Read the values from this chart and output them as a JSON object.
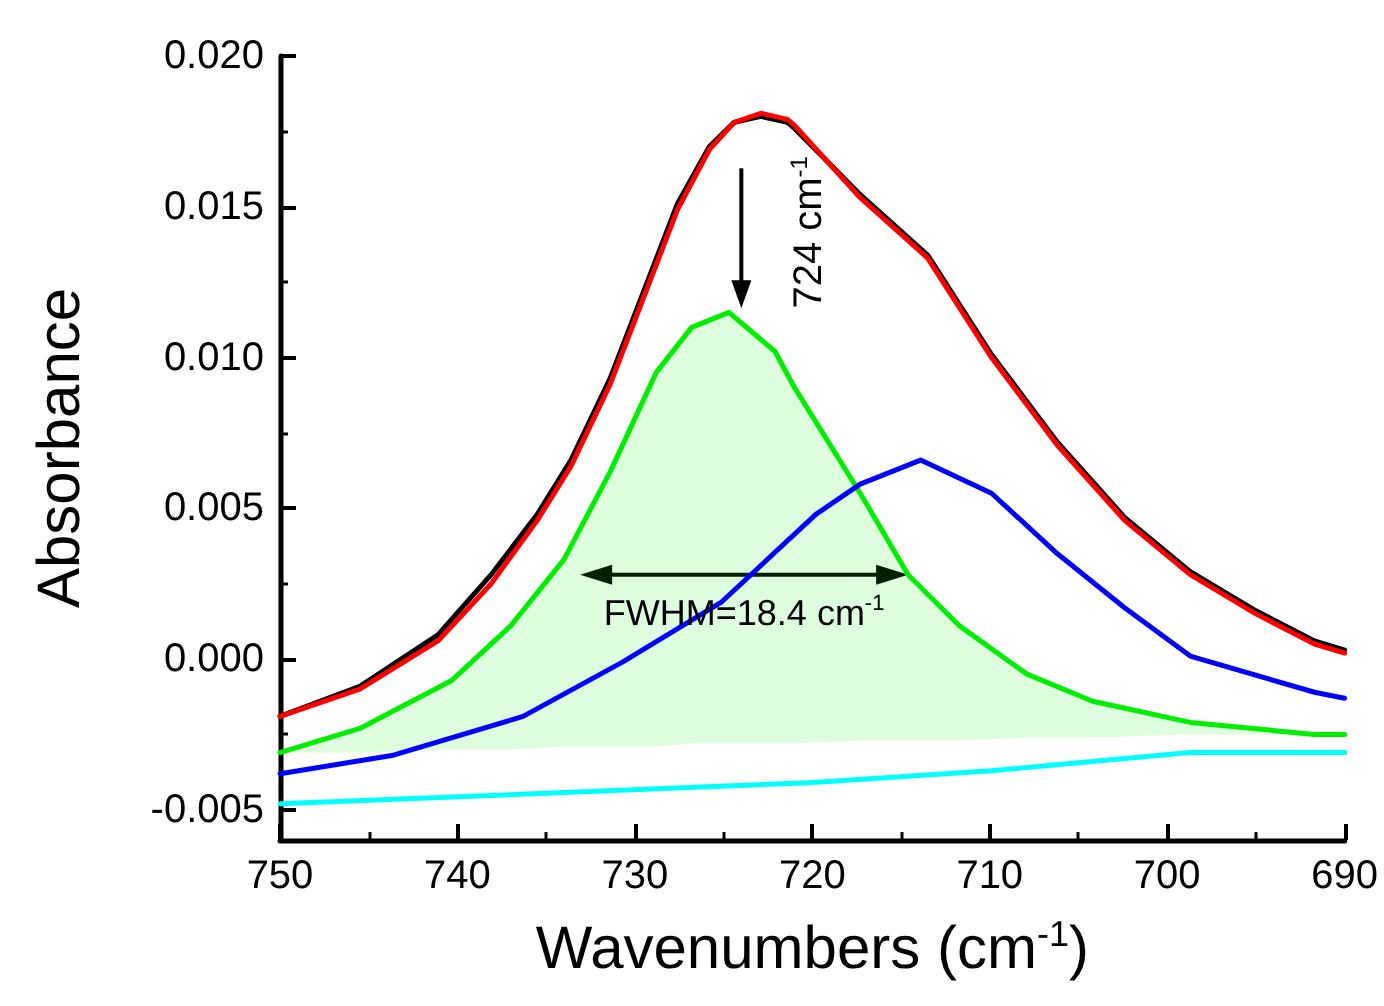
{
  "chart_data": {
    "type": "line",
    "xlabel": "Wavenumbers (cm$^{-1}$)",
    "ylabel": "Absorbance",
    "xlim": [
      750,
      690
    ],
    "xticks": [
      750,
      740,
      730,
      720,
      710,
      700,
      690
    ],
    "ylim": [
      -0.006,
      0.02
    ],
    "yticks": [
      {
        "value": -0.005,
        "label": "-0.005"
      },
      {
        "value": 0,
        "label": "0.000"
      },
      {
        "value": 0.005,
        "label": "0.005"
      },
      {
        "value": 0.01,
        "label": "0.010"
      },
      {
        "value": 0.015,
        "label": "0.015"
      },
      {
        "value": 0.02,
        "label": "0.020"
      }
    ],
    "marker": "none",
    "line_style": "solid",
    "series": [
      {
        "color": "#000000",
        "x": [
          750,
          745.5,
          741.1,
          738.1,
          735.5,
          733.6,
          731.4,
          729.5,
          727.6,
          725.8,
          724.4,
          722.9,
          721.4,
          721,
          717.3,
          713.5,
          709.9,
          706.2,
          702.4,
          698.7,
          695,
          691.7,
          690
        ],
        "values": [
          -0.0019,
          -0.0009,
          0.0008,
          0.0028,
          0.0048,
          0.0066,
          0.0093,
          0.0122,
          0.0151,
          0.017,
          0.0178,
          0.018,
          0.0178,
          0.0176,
          0.0154,
          0.0134,
          0.0101,
          0.0072,
          0.0047,
          0.0029,
          0.0016,
          0.0006,
          0.0003
        ]
      },
      {
        "color": "#ff0000",
        "x": [
          750,
          745.5,
          741.1,
          738.1,
          735.5,
          733.6,
          731.4,
          729.5,
          727.6,
          725.8,
          724.4,
          722.9,
          721.4,
          721,
          717.3,
          713.5,
          709.9,
          706.2,
          702.4,
          698.7,
          695,
          691.7,
          690
        ],
        "values": [
          -0.0019,
          -0.001,
          0.0006,
          0.0025,
          0.0046,
          0.0064,
          0.0091,
          0.012,
          0.0149,
          0.0169,
          0.0178,
          0.0181,
          0.0179,
          0.0177,
          0.0153,
          0.0133,
          0.01,
          0.0071,
          0.0046,
          0.0028,
          0.0015,
          0.0005,
          0.0002
        ]
      },
      {
        "color": "#00ee00",
        "x": [
          750,
          745.5,
          740.3,
          737,
          734,
          731.4,
          728.8,
          726.8,
          724.7,
          722.1,
          721,
          717.3,
          714.6,
          711.7,
          707.9,
          704.2,
          698.7,
          691.7,
          690
        ],
        "values": [
          -0.0031,
          -0.0023,
          -0.0007,
          0.0011,
          0.0033,
          0.0062,
          0.0095,
          0.011,
          0.0115,
          0.0102,
          0.009,
          0.0055,
          0.0028,
          0.0011,
          -0.0005,
          -0.0014,
          -0.0021,
          -0.0025,
          -0.0025
        ],
        "lower": [
          -0.0031,
          -0.0031,
          -0.003,
          -0.003,
          -0.0029,
          -0.0029,
          -0.0029,
          -0.0028,
          -0.0028,
          -0.0028,
          -0.0028,
          -0.0027,
          -0.0027,
          -0.0027,
          -0.0026,
          -0.0026,
          -0.0025,
          -0.0025,
          -0.0025
        ],
        "upper": [
          -0.0031,
          -0.0023,
          -0.0007,
          0.0011,
          0.0033,
          0.0062,
          0.0095,
          0.011,
          0.0115,
          0.0102,
          0.009,
          0.0055,
          0.0028,
          0.0011,
          -0.0005,
          -0.0014,
          -0.0021,
          -0.0025,
          -0.0025
        ]
      },
      {
        "color": "#0000ff",
        "x": [
          750,
          743.7,
          736.3,
          730.7,
          725.1,
          719.8,
          717.3,
          713.9,
          709.9,
          706.2,
          702.4,
          698.7,
          691.7,
          690
        ],
        "values": [
          -0.0038,
          -0.0032,
          -0.0019,
          -0.0001,
          0.0019,
          0.0048,
          0.0058,
          0.0066,
          0.0055,
          0.0035,
          0.0017,
          0.0001,
          -0.0011,
          -0.0013
        ]
      },
      {
        "color": "#00ffff",
        "x": [
          750,
          720.2,
          709.9,
          698.7,
          691.7,
          690
        ],
        "values": [
          -0.0048,
          -0.0041,
          -0.0037,
          -0.0031,
          -0.0031,
          -0.0031
        ]
      }
    ],
    "annotations": [
      {
        "text": "724 cm$^{-1}$",
        "x": 724,
        "y": 0.0115
      },
      {
        "text": "FWHM=18.4 cm$^{-1}$",
        "x": 714.6,
        "y": 0.0028
      }
    ]
  }
}
